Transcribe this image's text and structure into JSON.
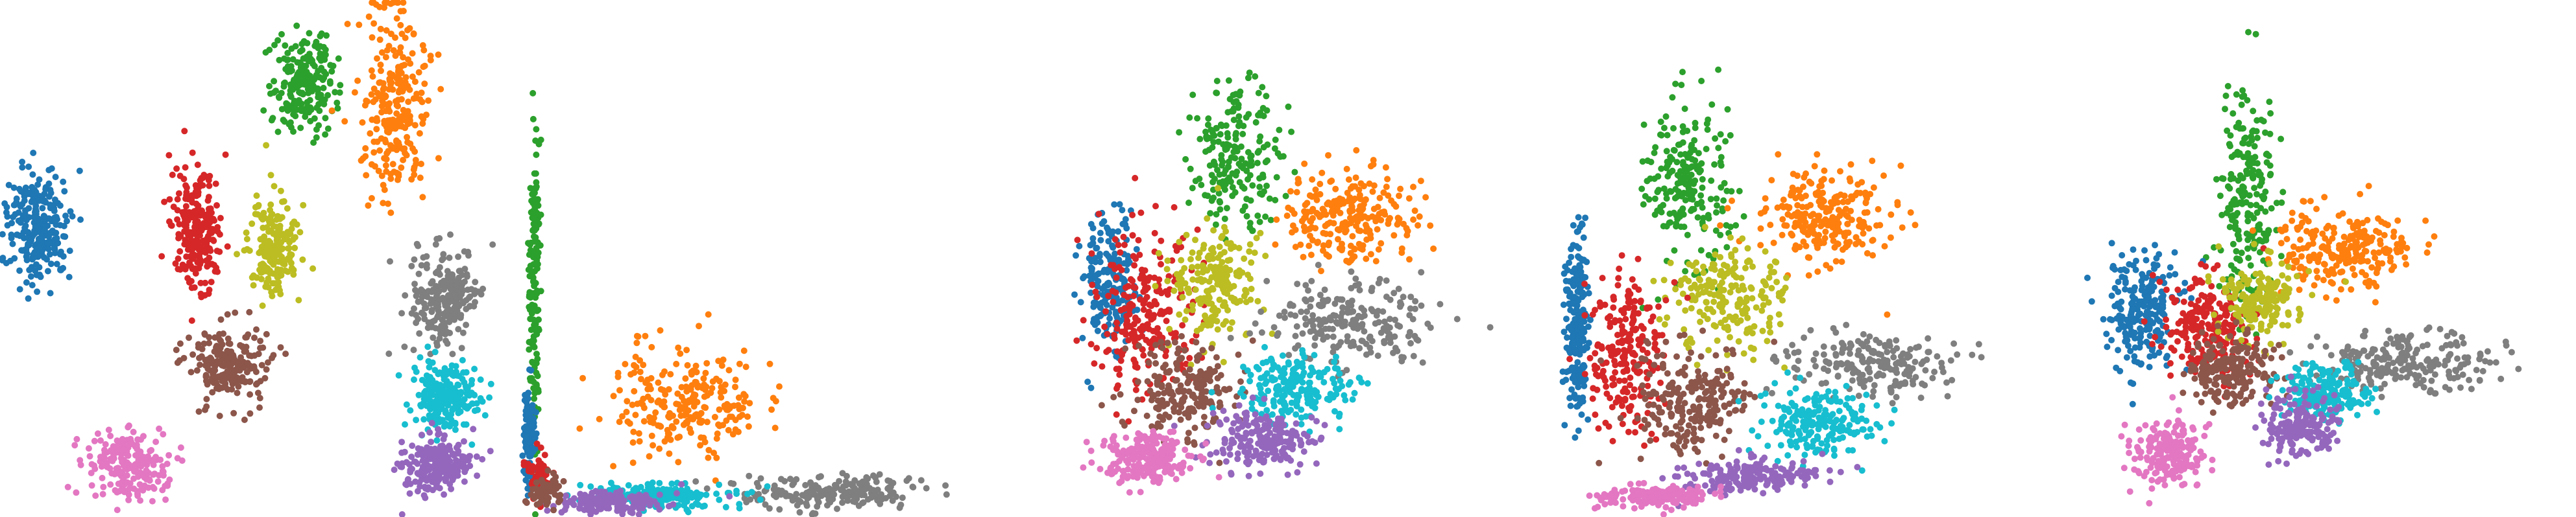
{
  "chart_data": [
    {
      "type": "scatter",
      "title": "",
      "xlabel": "",
      "ylabel": "",
      "axes_visible": false,
      "grid": false,
      "legend": "none",
      "clusters": [
        {
          "color": "#1f77b4",
          "center": [
            0.075,
            0.44
          ],
          "spread": [
            0.055,
            0.1
          ],
          "n": 260
        },
        {
          "color": "#d62728",
          "center": [
            0.39,
            0.44
          ],
          "spread": [
            0.045,
            0.1
          ],
          "n": 240
        },
        {
          "color": "#bcbd22",
          "center": [
            0.54,
            0.48
          ],
          "spread": [
            0.045,
            0.09
          ],
          "n": 200
        },
        {
          "color": "#2ca02c",
          "center": [
            0.6,
            0.16
          ],
          "spread": [
            0.055,
            0.09
          ],
          "n": 220
        },
        {
          "color": "#ff7f0e",
          "center": [
            0.78,
            0.2
          ],
          "spread": [
            0.06,
            0.16
          ],
          "n": 260
        },
        {
          "color": "#8c564b",
          "center": [
            0.45,
            0.7
          ],
          "spread": [
            0.07,
            0.07
          ],
          "n": 200
        },
        {
          "color": "#e377c2",
          "center": [
            0.25,
            0.9
          ],
          "spread": [
            0.07,
            0.06
          ],
          "n": 220
        },
        {
          "color": "#7f7f7f",
          "center": [
            0.88,
            0.58
          ],
          "spread": [
            0.06,
            0.09
          ],
          "n": 220
        },
        {
          "color": "#17becf",
          "center": [
            0.88,
            0.77
          ],
          "spread": [
            0.06,
            0.06
          ],
          "n": 220
        },
        {
          "color": "#9467bd",
          "center": [
            0.86,
            0.9
          ],
          "spread": [
            0.06,
            0.05
          ],
          "n": 220
        }
      ]
    },
    {
      "type": "scatter",
      "title": "",
      "xlabel": "",
      "ylabel": "",
      "axes_visible": false,
      "grid": false,
      "legend": "none",
      "clusters": [
        {
          "color": "#2ca02c",
          "center": [
            0.03,
            0.55
          ],
          "spread": [
            0.01,
            0.3
          ],
          "n": 160
        },
        {
          "color": "#1f77b4",
          "center": [
            0.02,
            0.85
          ],
          "spread": [
            0.01,
            0.08
          ],
          "n": 140
        },
        {
          "color": "#ff7f0e",
          "center": [
            0.33,
            0.78
          ],
          "spread": [
            0.13,
            0.1
          ],
          "n": 240
        },
        {
          "color": "#7f7f7f",
          "center": [
            0.62,
            0.95
          ],
          "spread": [
            0.18,
            0.03
          ],
          "n": 200
        },
        {
          "color": "#17becf",
          "center": [
            0.28,
            0.96
          ],
          "spread": [
            0.12,
            0.02
          ],
          "n": 180
        },
        {
          "color": "#9467bd",
          "center": [
            0.18,
            0.97
          ],
          "spread": [
            0.1,
            0.02
          ],
          "n": 160
        },
        {
          "color": "#d62728",
          "center": [
            0.04,
            0.92
          ],
          "spread": [
            0.02,
            0.04
          ],
          "n": 80
        },
        {
          "color": "#8c564b",
          "center": [
            0.05,
            0.95
          ],
          "spread": [
            0.03,
            0.03
          ],
          "n": 60
        }
      ]
    },
    {
      "type": "scatter",
      "title": "",
      "xlabel": "",
      "ylabel": "",
      "axes_visible": false,
      "grid": false,
      "legend": "none",
      "clusters": [
        {
          "color": "#2ca02c",
          "center": [
            0.4,
            0.3
          ],
          "spread": [
            0.08,
            0.12
          ],
          "n": 200
        },
        {
          "color": "#ff7f0e",
          "center": [
            0.62,
            0.42
          ],
          "spread": [
            0.12,
            0.08
          ],
          "n": 240
        },
        {
          "color": "#1f77b4",
          "center": [
            0.15,
            0.55
          ],
          "spread": [
            0.05,
            0.12
          ],
          "n": 200
        },
        {
          "color": "#d62728",
          "center": [
            0.22,
            0.6
          ],
          "spread": [
            0.1,
            0.14
          ],
          "n": 240
        },
        {
          "color": "#bcbd22",
          "center": [
            0.36,
            0.55
          ],
          "spread": [
            0.08,
            0.1
          ],
          "n": 200
        },
        {
          "color": "#7f7f7f",
          "center": [
            0.62,
            0.62
          ],
          "spread": [
            0.14,
            0.07
          ],
          "n": 220
        },
        {
          "color": "#8c564b",
          "center": [
            0.3,
            0.75
          ],
          "spread": [
            0.1,
            0.08
          ],
          "n": 200
        },
        {
          "color": "#17becf",
          "center": [
            0.52,
            0.75
          ],
          "spread": [
            0.1,
            0.06
          ],
          "n": 200
        },
        {
          "color": "#9467bd",
          "center": [
            0.45,
            0.85
          ],
          "spread": [
            0.1,
            0.05
          ],
          "n": 200
        },
        {
          "color": "#e377c2",
          "center": [
            0.22,
            0.89
          ],
          "spread": [
            0.08,
            0.05
          ],
          "n": 200
        }
      ]
    },
    {
      "type": "scatter",
      "title": "",
      "xlabel": "",
      "ylabel": "",
      "axes_visible": false,
      "grid": false,
      "legend": "none",
      "clusters": [
        {
          "color": "#2ca02c",
          "center": [
            0.27,
            0.35
          ],
          "spread": [
            0.07,
            0.14
          ],
          "n": 220
        },
        {
          "color": "#ff7f0e",
          "center": [
            0.53,
            0.42
          ],
          "spread": [
            0.12,
            0.08
          ],
          "n": 240
        },
        {
          "color": "#1f77b4",
          "center": [
            0.05,
            0.62
          ],
          "spread": [
            0.02,
            0.16
          ],
          "n": 200
        },
        {
          "color": "#bcbd22",
          "center": [
            0.35,
            0.58
          ],
          "spread": [
            0.1,
            0.1
          ],
          "n": 200
        },
        {
          "color": "#d62728",
          "center": [
            0.15,
            0.68
          ],
          "spread": [
            0.07,
            0.14
          ],
          "n": 220
        },
        {
          "color": "#7f7f7f",
          "center": [
            0.62,
            0.7
          ],
          "spread": [
            0.14,
            0.06
          ],
          "n": 200
        },
        {
          "color": "#8c564b",
          "center": [
            0.28,
            0.78
          ],
          "spread": [
            0.1,
            0.1
          ],
          "n": 220
        },
        {
          "color": "#17becf",
          "center": [
            0.52,
            0.82
          ],
          "spread": [
            0.1,
            0.06
          ],
          "n": 200
        },
        {
          "color": "#9467bd",
          "center": [
            0.38,
            0.92
          ],
          "spread": [
            0.12,
            0.03
          ],
          "n": 180
        },
        {
          "color": "#e377c2",
          "center": [
            0.2,
            0.96
          ],
          "spread": [
            0.1,
            0.02
          ],
          "n": 160
        }
      ]
    },
    {
      "type": "scatter",
      "title": "",
      "xlabel": "",
      "ylabel": "",
      "axes_visible": false,
      "grid": false,
      "legend": "none",
      "clusters": [
        {
          "color": "#2ca02c",
          "center": [
            0.35,
            0.4
          ],
          "spread": [
            0.05,
            0.2
          ],
          "n": 220
        },
        {
          "color": "#ff7f0e",
          "center": [
            0.55,
            0.48
          ],
          "spread": [
            0.12,
            0.07
          ],
          "n": 240
        },
        {
          "color": "#1f77b4",
          "center": [
            0.14,
            0.6
          ],
          "spread": [
            0.07,
            0.1
          ],
          "n": 220
        },
        {
          "color": "#d62728",
          "center": [
            0.27,
            0.63
          ],
          "spread": [
            0.08,
            0.09
          ],
          "n": 220
        },
        {
          "color": "#bcbd22",
          "center": [
            0.38,
            0.58
          ],
          "spread": [
            0.07,
            0.07
          ],
          "n": 180
        },
        {
          "color": "#7f7f7f",
          "center": [
            0.66,
            0.7
          ],
          "spread": [
            0.16,
            0.05
          ],
          "n": 220
        },
        {
          "color": "#8c564b",
          "center": [
            0.32,
            0.72
          ],
          "spread": [
            0.08,
            0.06
          ],
          "n": 200
        },
        {
          "color": "#17becf",
          "center": [
            0.5,
            0.76
          ],
          "spread": [
            0.08,
            0.05
          ],
          "n": 200
        },
        {
          "color": "#9467bd",
          "center": [
            0.45,
            0.82
          ],
          "spread": [
            0.07,
            0.05
          ],
          "n": 180
        },
        {
          "color": "#e377c2",
          "center": [
            0.2,
            0.88
          ],
          "spread": [
            0.07,
            0.06
          ],
          "n": 200
        }
      ]
    }
  ]
}
